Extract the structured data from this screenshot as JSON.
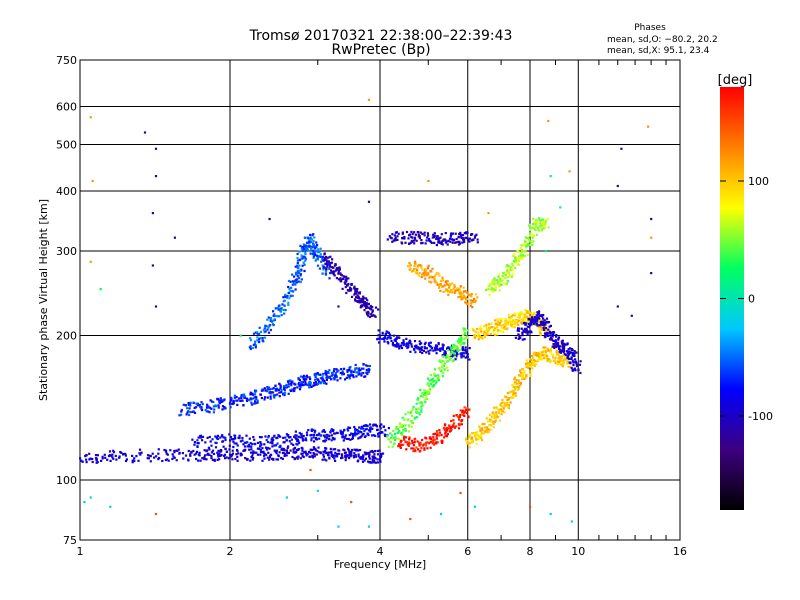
{
  "chart_data": {
    "type": "scatter",
    "title": "Tromsø 20170321 22:38:00–22:39:43",
    "subtitle": "RwPretec (Bp)",
    "xlabel": "Frequency [MHz]",
    "ylabel": "Stationary phase Virtual Height [km]",
    "x_scale": "log",
    "y_scale": "log",
    "xlim": [
      1,
      16
    ],
    "ylim": [
      75,
      750
    ],
    "x_ticks": [
      1,
      2,
      4,
      6,
      8,
      10,
      16
    ],
    "y_ticks": [
      75,
      100,
      200,
      300,
      400,
      500,
      600,
      750
    ],
    "grid": true,
    "stats": {
      "heading": "Phases",
      "line_o": "mean, sd,O: −80.2, 20.2",
      "line_x": "mean, sd,X:  95.1, 23.4"
    },
    "colorbar": {
      "label": "[deg]",
      "ticks": [
        100,
        0,
        -100
      ],
      "range": [
        -180,
        180
      ],
      "colors": [
        "#000000",
        "#3d0080",
        "#0000ff",
        "#00c8ff",
        "#00ff60",
        "#ffff00",
        "#ff8000",
        "#ff0000"
      ]
    },
    "traces": [
      {
        "name": "",
        "phase_deg": -95,
        "points": [
          [
            1.0,
            111
          ],
          [
            1.2,
            112
          ],
          [
            1.5,
            113
          ],
          [
            1.8,
            113
          ],
          [
            2.0,
            113
          ],
          [
            2.3,
            113
          ],
          [
            2.6,
            114
          ],
          [
            2.9,
            114
          ],
          [
            3.2,
            113
          ],
          [
            3.5,
            113
          ],
          [
            3.8,
            112
          ],
          [
            4.0,
            112
          ]
        ]
      },
      {
        "name": "",
        "phase_deg": -85,
        "points": [
          [
            1.7,
            120
          ],
          [
            2.0,
            121
          ],
          [
            2.3,
            120
          ],
          [
            2.6,
            121
          ],
          [
            2.9,
            124
          ],
          [
            3.2,
            124
          ],
          [
            3.5,
            125
          ],
          [
            3.8,
            127
          ],
          [
            4.1,
            127
          ]
        ]
      },
      {
        "name": "",
        "phase_deg": -70,
        "points": [
          [
            1.6,
            140
          ],
          [
            1.8,
            142
          ],
          [
            2.0,
            145
          ],
          [
            2.2,
            148
          ],
          [
            2.4,
            152
          ],
          [
            2.6,
            156
          ],
          [
            2.8,
            160
          ],
          [
            3.0,
            162
          ],
          [
            3.2,
            165
          ],
          [
            3.5,
            168
          ],
          [
            3.8,
            170
          ]
        ]
      },
      {
        "name": "",
        "phase_deg": -55,
        "points": [
          [
            2.2,
            190
          ],
          [
            2.4,
            210
          ],
          [
            2.6,
            240
          ],
          [
            2.75,
            270
          ],
          [
            2.8,
            300
          ],
          [
            2.9,
            320
          ],
          [
            3.0,
            290
          ],
          [
            3.2,
            270
          ]
        ]
      },
      {
        "name": "",
        "phase_deg": -112,
        "points": [
          [
            3.1,
            290
          ],
          [
            3.3,
            270
          ],
          [
            3.5,
            250
          ],
          [
            3.7,
            235
          ],
          [
            3.9,
            220
          ]
        ]
      },
      {
        "name": "",
        "phase_deg": -90,
        "points": [
          [
            4.0,
            200
          ],
          [
            4.3,
            195
          ],
          [
            4.7,
            190
          ],
          [
            5.2,
            188
          ],
          [
            5.6,
            185
          ],
          [
            6.0,
            183
          ]
        ]
      },
      {
        "name": "",
        "phase_deg": -105,
        "points": [
          [
            4.2,
            320
          ],
          [
            4.7,
            320
          ],
          [
            5.2,
            318
          ],
          [
            5.7,
            318
          ],
          [
            6.2,
            320
          ]
        ]
      },
      {
        "name": "",
        "phase_deg": 45,
        "points": [
          [
            4.2,
            120
          ],
          [
            4.5,
            130
          ],
          [
            4.8,
            145
          ],
          [
            5.1,
            160
          ],
          [
            5.4,
            175
          ],
          [
            5.7,
            190
          ],
          [
            6.0,
            205
          ]
        ]
      },
      {
        "name": "",
        "phase_deg": 115,
        "points": [
          [
            4.6,
            280
          ],
          [
            5.0,
            270
          ],
          [
            5.4,
            255
          ],
          [
            5.8,
            245
          ],
          [
            6.2,
            235
          ]
        ]
      },
      {
        "name": "",
        "phase_deg": 100,
        "points": [
          [
            6.0,
            120
          ],
          [
            6.4,
            125
          ],
          [
            6.8,
            135
          ],
          [
            7.2,
            145
          ],
          [
            7.6,
            160
          ],
          [
            8.0,
            175
          ],
          [
            8.5,
            185
          ],
          [
            9.0,
            180
          ],
          [
            9.5,
            175
          ]
        ]
      },
      {
        "name": "",
        "phase_deg": 95,
        "points": [
          [
            6.2,
            200
          ],
          [
            6.6,
            205
          ],
          [
            7.0,
            210
          ],
          [
            7.4,
            215
          ],
          [
            7.8,
            220
          ],
          [
            8.2,
            215
          ],
          [
            8.6,
            205
          ]
        ]
      },
      {
        "name": "",
        "phase_deg": -100,
        "points": [
          [
            7.6,
            200
          ],
          [
            8.0,
            210
          ],
          [
            8.4,
            220
          ],
          [
            8.8,
            200
          ],
          [
            9.2,
            190
          ],
          [
            9.6,
            185
          ],
          [
            10.0,
            170
          ]
        ]
      },
      {
        "name": "",
        "phase_deg": 60,
        "points": [
          [
            6.6,
            250
          ],
          [
            7.0,
            260
          ],
          [
            7.4,
            280
          ],
          [
            7.8,
            300
          ],
          [
            8.2,
            340
          ],
          [
            8.6,
            345
          ]
        ]
      },
      {
        "name": "",
        "phase_deg": 170,
        "points": [
          [
            4.4,
            120
          ],
          [
            4.8,
            118
          ],
          [
            5.2,
            122
          ],
          [
            5.6,
            130
          ],
          [
            6.0,
            140
          ]
        ]
      }
    ],
    "scatter": [
      {
        "name": "",
        "phase_deg": -110,
        "points": [
          [
            1.35,
            530
          ],
          [
            1.42,
            490
          ],
          [
            1.42,
            430
          ],
          [
            1.4,
            360
          ],
          [
            1.55,
            320
          ],
          [
            1.42,
            230
          ],
          [
            1.4,
            280
          ],
          [
            12.2,
            490
          ],
          [
            12.0,
            410
          ],
          [
            14.0,
            350
          ],
          [
            14.0,
            270
          ],
          [
            12.0,
            230
          ],
          [
            12.8,
            220
          ],
          [
            3.3,
            230
          ],
          [
            3.6,
            250
          ],
          [
            2.4,
            350
          ],
          [
            3.8,
            380
          ]
        ]
      },
      {
        "name": "",
        "phase_deg": 120,
        "points": [
          [
            1.05,
            570
          ],
          [
            1.06,
            420
          ],
          [
            1.05,
            285
          ],
          [
            3.8,
            620
          ],
          [
            8.7,
            560
          ],
          [
            13.8,
            545
          ],
          [
            9.6,
            440
          ],
          [
            5.0,
            420
          ],
          [
            6.6,
            360
          ],
          [
            14.0,
            320
          ]
        ]
      },
      {
        "name": "",
        "phase_deg": -20,
        "points": [
          [
            1.02,
            90
          ],
          [
            1.05,
            92
          ],
          [
            1.15,
            88
          ],
          [
            3.3,
            80
          ],
          [
            3.8,
            80
          ],
          [
            9.7,
            82
          ],
          [
            2.6,
            92
          ],
          [
            3.0,
            95
          ],
          [
            5.3,
            85
          ],
          [
            6.2,
            88
          ],
          [
            8.8,
            85
          ]
        ]
      },
      {
        "name": "",
        "phase_deg": 150,
        "points": [
          [
            1.42,
            85
          ],
          [
            3.5,
            90
          ],
          [
            4.6,
            83
          ],
          [
            5.8,
            94
          ],
          [
            8.0,
            88
          ],
          [
            2.9,
            105
          ]
        ]
      },
      {
        "name": "",
        "phase_deg": 20,
        "points": [
          [
            8.8,
            430
          ],
          [
            9.2,
            370
          ],
          [
            8.6,
            300
          ],
          [
            2.1,
            200
          ],
          [
            1.1,
            250
          ]
        ]
      }
    ]
  }
}
